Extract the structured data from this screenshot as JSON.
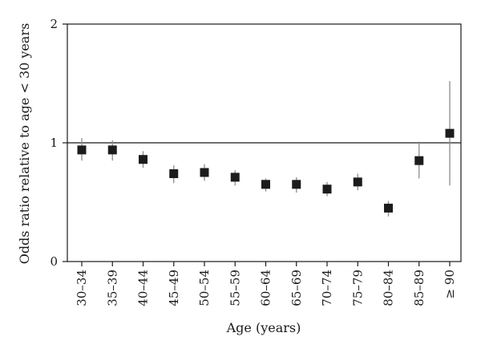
{
  "chart_data": {
    "type": "scatter",
    "xlabel": "Age (years)",
    "ylabel": "Odds ratio relative to age < 30 years",
    "ylim": [
      0,
      2
    ],
    "yticks": [
      "0",
      "1",
      "2"
    ],
    "reference_line": 1,
    "categories": [
      "30–34",
      "35–39",
      "40–44",
      "45–49",
      "50–54",
      "55–59",
      "60–64",
      "65–69",
      "70–74",
      "75–79",
      "80–84",
      "85–89",
      "≥ 90"
    ],
    "series": [
      {
        "values": [
          0.94,
          0.94,
          0.86,
          0.74,
          0.75,
          0.71,
          0.65,
          0.65,
          0.61,
          0.67,
          0.45,
          0.85,
          1.08
        ],
        "ci_low": [
          0.85,
          0.85,
          0.79,
          0.66,
          0.68,
          0.64,
          0.59,
          0.58,
          0.55,
          0.6,
          0.38,
          0.7,
          0.64
        ],
        "ci_high": [
          1.04,
          1.02,
          0.93,
          0.81,
          0.82,
          0.77,
          0.7,
          0.71,
          0.67,
          0.74,
          0.51,
          1.01,
          1.52
        ]
      }
    ],
    "colors": {
      "marker": "#1c1c1c",
      "errorbar": "#8c8c8c",
      "axis": "#1a1a1a"
    },
    "grid": false,
    "legend": "none"
  }
}
